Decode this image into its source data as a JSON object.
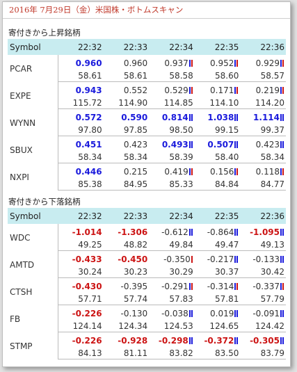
{
  "page_title": "2016年 7月29日（金）米国株・ボトムスキャン",
  "colors": {
    "up": "#1a1adc",
    "down": "#cc1414",
    "header_bg": "#c8ecf0",
    "title": "#c0392b"
  },
  "sections": [
    {
      "title": "寄付きから上昇銘柄",
      "header": [
        "Symbol",
        "22:32",
        "22:33",
        "22:34",
        "22:35",
        "22:36"
      ],
      "rows": [
        {
          "symbol": "PCAR",
          "changes": [
            {
              "v": "0.960",
              "cls": "up",
              "m": ""
            },
            {
              "v": "0.960",
              "cls": "flat",
              "m": ""
            },
            {
              "v": "0.937",
              "cls": "flat",
              "m": "br"
            },
            {
              "v": "0.952",
              "cls": "flat",
              "m": "br"
            },
            {
              "v": "0.929",
              "cls": "flat",
              "m": "br"
            }
          ],
          "prices": [
            "58.61",
            "58.61",
            "58.58",
            "58.60",
            "58.57"
          ]
        },
        {
          "symbol": "EXPE",
          "changes": [
            {
              "v": "0.943",
              "cls": "up",
              "m": ""
            },
            {
              "v": "0.552",
              "cls": "flat",
              "m": ""
            },
            {
              "v": "0.529",
              "cls": "flat",
              "m": "br"
            },
            {
              "v": "0.171",
              "cls": "flat",
              "m": "br"
            },
            {
              "v": "0.219",
              "cls": "flat",
              "m": "br"
            }
          ],
          "prices": [
            "115.72",
            "114.90",
            "114.85",
            "114.10",
            "114.20"
          ]
        },
        {
          "symbol": "WYNN",
          "changes": [
            {
              "v": "0.572",
              "cls": "up",
              "m": ""
            },
            {
              "v": "0.590",
              "cls": "up",
              "m": ""
            },
            {
              "v": "0.814",
              "cls": "up",
              "m": "bb"
            },
            {
              "v": "1.038",
              "cls": "up",
              "m": "bb"
            },
            {
              "v": "1.114",
              "cls": "up",
              "m": "bb"
            }
          ],
          "prices": [
            "97.80",
            "97.85",
            "98.50",
            "99.15",
            "99.37"
          ]
        },
        {
          "symbol": "SBUX",
          "changes": [
            {
              "v": "0.451",
              "cls": "up",
              "m": ""
            },
            {
              "v": "0.423",
              "cls": "flat",
              "m": ""
            },
            {
              "v": "0.493",
              "cls": "up",
              "m": "bb"
            },
            {
              "v": "0.507",
              "cls": "up",
              "m": "bb"
            },
            {
              "v": "0.423",
              "cls": "flat",
              "m": "bb"
            }
          ],
          "prices": [
            "58.34",
            "58.34",
            "58.39",
            "58.40",
            "58.34"
          ]
        },
        {
          "symbol": "NXPI",
          "changes": [
            {
              "v": "0.446",
              "cls": "up",
              "m": ""
            },
            {
              "v": "0.215",
              "cls": "flat",
              "m": ""
            },
            {
              "v": "0.419",
              "cls": "flat",
              "m": "br"
            },
            {
              "v": "0.156",
              "cls": "flat",
              "m": "br"
            },
            {
              "v": "0.118",
              "cls": "flat",
              "m": "br"
            }
          ],
          "prices": [
            "85.38",
            "84.95",
            "85.33",
            "84.84",
            "84.77"
          ]
        }
      ]
    },
    {
      "title": "寄付きから下落銘柄",
      "header": [
        "Symbol",
        "22:32",
        "22:33",
        "22:34",
        "22:35",
        "22:36"
      ],
      "rows": [
        {
          "symbol": "WDC",
          "changes": [
            {
              "v": "-1.014",
              "cls": "down",
              "m": ""
            },
            {
              "v": "-1.306",
              "cls": "down",
              "m": ""
            },
            {
              "v": "-0.612",
              "cls": "flat",
              "m": "bb"
            },
            {
              "v": "-0.864",
              "cls": "flat",
              "m": "bb"
            },
            {
              "v": "-1.095",
              "cls": "down",
              "m": "bb"
            }
          ],
          "prices": [
            "49.25",
            "48.82",
            "49.84",
            "49.47",
            "49.13"
          ]
        },
        {
          "symbol": "AMTD",
          "changes": [
            {
              "v": "-0.433",
              "cls": "down",
              "m": ""
            },
            {
              "v": "-0.450",
              "cls": "down",
              "m": ""
            },
            {
              "v": "-0.350",
              "cls": "flat",
              "m": "r"
            },
            {
              "v": "-0.217",
              "cls": "flat",
              "m": "bb"
            },
            {
              "v": "-0.133",
              "cls": "flat",
              "m": "bb"
            }
          ],
          "prices": [
            "30.24",
            "30.23",
            "30.29",
            "30.37",
            "30.42"
          ]
        },
        {
          "symbol": "CTSH",
          "changes": [
            {
              "v": "-0.430",
              "cls": "down",
              "m": ""
            },
            {
              "v": "-0.395",
              "cls": "flat",
              "m": ""
            },
            {
              "v": "-0.291",
              "cls": "flat",
              "m": "br"
            },
            {
              "v": "-0.314",
              "cls": "flat",
              "m": "br"
            },
            {
              "v": "-0.337",
              "cls": "flat",
              "m": "br"
            }
          ],
          "prices": [
            "57.71",
            "57.74",
            "57.83",
            "57.81",
            "57.79"
          ]
        },
        {
          "symbol": "FB",
          "changes": [
            {
              "v": "-0.226",
              "cls": "down",
              "m": ""
            },
            {
              "v": "-0.130",
              "cls": "flat",
              "m": ""
            },
            {
              "v": "-0.038",
              "cls": "flat",
              "m": "bb"
            },
            {
              "v": "0.019",
              "cls": "flat",
              "m": "bb"
            },
            {
              "v": "-0.091",
              "cls": "flat",
              "m": "bb"
            }
          ],
          "prices": [
            "124.14",
            "124.34",
            "124.53",
            "124.65",
            "124.42"
          ]
        },
        {
          "symbol": "STMP",
          "changes": [
            {
              "v": "-0.226",
              "cls": "down",
              "m": ""
            },
            {
              "v": "-0.928",
              "cls": "down",
              "m": ""
            },
            {
              "v": "-0.298",
              "cls": "down",
              "m": "bb"
            },
            {
              "v": "-0.372",
              "cls": "down",
              "m": "bb"
            },
            {
              "v": "-0.305",
              "cls": "down",
              "m": "bb"
            }
          ],
          "prices": [
            "84.13",
            "81.11",
            "83.82",
            "83.50",
            "83.79"
          ]
        }
      ]
    }
  ]
}
